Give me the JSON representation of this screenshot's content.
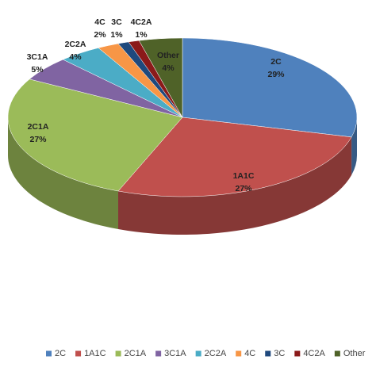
{
  "chart_data": {
    "type": "pie",
    "categories": [
      "2C",
      "1A1C",
      "2C1A",
      "3C1A",
      "2C2A",
      "4C",
      "3C",
      "4C2A",
      "Other"
    ],
    "values": [
      29,
      27,
      27,
      5,
      4,
      2,
      1,
      1,
      4
    ],
    "value_labels": [
      "29%",
      "27%",
      "27%",
      "5%",
      "4%",
      "2%",
      "1%",
      "1%",
      "4%"
    ],
    "colors": [
      "#4f81bd",
      "#c0504d",
      "#9bbb59",
      "#8064a2",
      "#4bacc6",
      "#f79646",
      "#1f497d",
      "#8b1a1a",
      "#4f6228"
    ],
    "legend": "bottom"
  }
}
